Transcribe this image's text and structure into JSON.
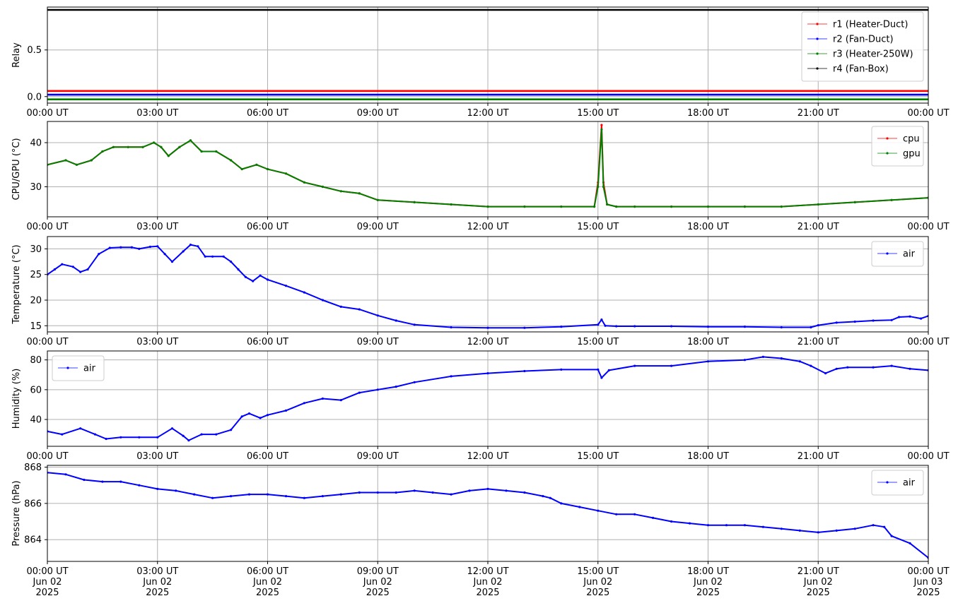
{
  "chart_data": [
    {
      "type": "line",
      "ylabel": "Relay",
      "yticks": [
        0.0,
        0.5
      ],
      "ytick_labels": [
        "0.0",
        "0.5"
      ],
      "ylim": [
        -0.07,
        0.96
      ],
      "x_unit": "hours since 00:00 UT Jun 02 2025",
      "xlim": [
        0,
        24
      ],
      "grid": true,
      "legend": "top-right",
      "xtick_labels": [
        "00:00 UT",
        "03:00 UT",
        "06:00 UT",
        "09:00 UT",
        "12:00 UT",
        "15:00 UT",
        "18:00 UT",
        "21:00 UT",
        "00:00 UT"
      ],
      "series": [
        {
          "name": "r1 (Heater-Duct)",
          "color": "#ff0000",
          "x": [
            0,
            24
          ],
          "y": [
            0.06,
            0.06
          ]
        },
        {
          "name": "r2 (Fan-Duct)",
          "color": "#0000ff",
          "x": [
            0,
            24
          ],
          "y": [
            0.02,
            0.02
          ]
        },
        {
          "name": "r3 (Heater-250W)",
          "color": "#008000",
          "x": [
            0,
            24
          ],
          "y": [
            -0.03,
            -0.03
          ]
        },
        {
          "name": "r4 (Fan-Box)",
          "color": "#000000",
          "x": [
            0,
            24
          ],
          "y": [
            0.93,
            0.93
          ]
        }
      ]
    },
    {
      "type": "line",
      "ylabel": "CPU/GPU (°C)",
      "yticks": [
        30,
        40
      ],
      "ytick_labels": [
        "30",
        "40"
      ],
      "ylim": [
        23.2,
        44.8
      ],
      "xlim": [
        0,
        24
      ],
      "grid": true,
      "legend": "top-right",
      "xtick_labels": [
        "00:00 UT",
        "03:00 UT",
        "06:00 UT",
        "09:00 UT",
        "12:00 UT",
        "15:00 UT",
        "18:00 UT",
        "21:00 UT",
        "00:00 UT"
      ],
      "series": [
        {
          "name": "cpu",
          "color": "#ff0000",
          "x": [
            0,
            0.5,
            0.8,
            1.2,
            1.5,
            1.8,
            2.2,
            2.6,
            2.9,
            3.1,
            3.3,
            3.6,
            3.9,
            4.2,
            4.6,
            5.0,
            5.3,
            5.7,
            6.0,
            6.5,
            7.0,
            7.5,
            8.0,
            8.5,
            9.0,
            10.0,
            11.0,
            12.0,
            13.0,
            14.0,
            14.9,
            15.0,
            15.1,
            15.15,
            15.25,
            15.5,
            16.0,
            17.0,
            18.0,
            19.0,
            20.0,
            21.0,
            22.0,
            23.0,
            24.0
          ],
          "y": [
            35,
            36,
            35,
            36,
            38,
            39,
            39,
            39,
            40,
            39,
            37,
            39,
            40.5,
            38,
            38,
            36,
            34,
            35,
            34,
            33,
            31,
            30,
            29,
            28.5,
            27,
            26.5,
            26,
            25.5,
            25.5,
            25.5,
            25.5,
            31,
            44,
            31,
            26,
            25.5,
            25.5,
            25.5,
            25.5,
            25.5,
            25.5,
            26,
            26.5,
            27,
            27.5
          ]
        },
        {
          "name": "gpu",
          "color": "#008000",
          "x": [
            0,
            0.5,
            0.8,
            1.2,
            1.5,
            1.8,
            2.2,
            2.6,
            2.9,
            3.1,
            3.3,
            3.6,
            3.9,
            4.2,
            4.6,
            5.0,
            5.3,
            5.7,
            6.0,
            6.5,
            7.0,
            7.5,
            8.0,
            8.5,
            9.0,
            10.0,
            11.0,
            12.0,
            13.0,
            14.0,
            14.9,
            15.0,
            15.1,
            15.15,
            15.25,
            15.5,
            16.0,
            17.0,
            18.0,
            19.0,
            20.0,
            21.0,
            22.0,
            23.0,
            24.0
          ],
          "y": [
            35,
            36,
            35,
            36,
            38,
            39,
            39,
            39,
            40,
            39,
            37,
            39,
            40.5,
            38,
            38,
            36,
            34,
            35,
            34,
            33,
            31,
            30,
            29,
            28.5,
            27,
            26.5,
            26,
            25.5,
            25.5,
            25.5,
            25.5,
            30,
            43,
            30,
            26,
            25.5,
            25.5,
            25.5,
            25.5,
            25.5,
            25.5,
            26,
            26.5,
            27,
            27.5
          ]
        }
      ]
    },
    {
      "type": "line",
      "ylabel": "Temperature (°C)",
      "yticks": [
        15,
        20,
        25,
        30
      ],
      "ytick_labels": [
        "15",
        "20",
        "25",
        "30"
      ],
      "ylim": [
        13.8,
        32.4
      ],
      "xlim": [
        0,
        24
      ],
      "grid": true,
      "legend": "top-right",
      "xtick_labels": [
        "00:00 UT",
        "03:00 UT",
        "06:00 UT",
        "09:00 UT",
        "12:00 UT",
        "15:00 UT",
        "18:00 UT",
        "21:00 UT",
        "00:00 UT"
      ],
      "series": [
        {
          "name": "air",
          "color": "#0000ff",
          "x": [
            0,
            0.2,
            0.4,
            0.7,
            0.9,
            1.1,
            1.4,
            1.7,
            2.0,
            2.3,
            2.5,
            2.8,
            3.0,
            3.2,
            3.4,
            3.7,
            3.9,
            4.1,
            4.3,
            4.5,
            4.8,
            5.0,
            5.2,
            5.4,
            5.6,
            5.8,
            6.0,
            6.5,
            7.0,
            7.5,
            8.0,
            8.5,
            9.0,
            9.5,
            10.0,
            11.0,
            12.0,
            13.0,
            14.0,
            15.0,
            15.1,
            15.2,
            15.5,
            16.0,
            17.0,
            18.0,
            19.0,
            20.0,
            20.8,
            21.0,
            21.5,
            22.0,
            22.5,
            23.0,
            23.2,
            23.5,
            23.8,
            24.0
          ],
          "y": [
            25,
            26,
            27,
            26.5,
            25.5,
            26,
            29,
            30.2,
            30.3,
            30.3,
            30,
            30.4,
            30.5,
            29,
            27.5,
            29.5,
            30.8,
            30.5,
            28.5,
            28.5,
            28.5,
            27.5,
            26,
            24.5,
            23.7,
            24.8,
            24,
            22.8,
            21.5,
            20,
            18.7,
            18.2,
            17,
            16,
            15.2,
            14.7,
            14.6,
            14.6,
            14.8,
            15.2,
            16.2,
            15,
            14.9,
            14.9,
            14.9,
            14.8,
            14.8,
            14.7,
            14.7,
            15.1,
            15.6,
            15.8,
            16,
            16.1,
            16.7,
            16.8,
            16.4,
            16.9
          ]
        }
      ]
    },
    {
      "type": "line",
      "ylabel": "Humidity (%)",
      "yticks": [
        40,
        60,
        80
      ],
      "ytick_labels": [
        "40",
        "60",
        "80"
      ],
      "ylim": [
        22,
        86
      ],
      "xlim": [
        0,
        24
      ],
      "grid": true,
      "legend": "top-left",
      "xtick_labels": [
        "00:00 UT",
        "03:00 UT",
        "06:00 UT",
        "09:00 UT",
        "12:00 UT",
        "15:00 UT",
        "18:00 UT",
        "21:00 UT",
        "00:00 UT"
      ],
      "series": [
        {
          "name": "air",
          "color": "#0000ff",
          "x": [
            0,
            0.4,
            0.9,
            1.3,
            1.6,
            2.0,
            2.5,
            3.0,
            3.4,
            3.7,
            3.85,
            4.2,
            4.6,
            5.0,
            5.3,
            5.5,
            5.8,
            6.0,
            6.5,
            7.0,
            7.5,
            8.0,
            8.5,
            9.0,
            9.5,
            10.0,
            11.0,
            12.0,
            13.0,
            14.0,
            15.0,
            15.1,
            15.3,
            16.0,
            17.0,
            18.0,
            19.0,
            19.5,
            20.0,
            20.5,
            20.8,
            21.2,
            21.5,
            21.8,
            22.5,
            23.0,
            23.5,
            24.0
          ],
          "y": [
            32,
            30,
            34,
            30,
            27,
            28,
            28,
            28,
            34,
            29,
            26,
            30,
            30,
            33,
            42,
            44,
            41,
            43,
            46,
            51,
            54,
            53,
            58,
            60,
            62,
            65,
            69,
            71,
            72.5,
            73.5,
            73.5,
            68,
            73,
            76,
            76,
            79,
            80,
            82,
            81,
            79,
            76,
            71,
            74,
            75,
            75,
            76,
            74,
            73
          ]
        }
      ]
    },
    {
      "type": "line",
      "ylabel": "Pressure (hPa)",
      "yticks": [
        864,
        866,
        868
      ],
      "ytick_labels": [
        "864",
        "866",
        "868"
      ],
      "ylim": [
        862.8,
        868.1
      ],
      "xlim": [
        0,
        24
      ],
      "grid": true,
      "legend": "top-right",
      "xtick_labels": [
        "00:00 UT\nJun 02\n2025",
        "03:00 UT\nJun 02\n2025",
        "06:00 UT\nJun 02\n2025",
        "09:00 UT\nJun 02\n2025",
        "12:00 UT\nJun 02\n2025",
        "15:00 UT\nJun 02\n2025",
        "18:00 UT\nJun 02\n2025",
        "21:00 UT\nJun 02\n2025",
        "00:00 UT\nJun 03\n2025"
      ],
      "series": [
        {
          "name": "air",
          "color": "#0000ff",
          "x": [
            0,
            0.5,
            1.0,
            1.5,
            2.0,
            2.5,
            3.0,
            3.5,
            4.0,
            4.5,
            5.0,
            5.5,
            6.0,
            6.5,
            7.0,
            7.5,
            8.0,
            8.5,
            9.0,
            9.5,
            10.0,
            10.5,
            11.0,
            11.5,
            12.0,
            12.5,
            13.0,
            13.5,
            13.7,
            14.0,
            14.5,
            15.0,
            15.5,
            16.0,
            16.5,
            17.0,
            17.5,
            18.0,
            18.5,
            19.0,
            19.5,
            20.0,
            20.5,
            21.0,
            21.5,
            22.0,
            22.5,
            22.8,
            23.0,
            23.5,
            24.0
          ],
          "y": [
            867.7,
            867.6,
            867.3,
            867.2,
            867.2,
            867.0,
            866.8,
            866.7,
            866.5,
            866.3,
            866.4,
            866.5,
            866.5,
            866.4,
            866.3,
            866.4,
            866.5,
            866.6,
            866.6,
            866.6,
            866.7,
            866.6,
            866.5,
            866.7,
            866.8,
            866.7,
            866.6,
            866.4,
            866.3,
            866.0,
            865.8,
            865.6,
            865.4,
            865.4,
            865.2,
            865.0,
            864.9,
            864.8,
            864.8,
            864.8,
            864.7,
            864.6,
            864.5,
            864.4,
            864.5,
            864.6,
            864.8,
            864.7,
            864.2,
            863.8,
            863.0
          ]
        }
      ]
    }
  ]
}
